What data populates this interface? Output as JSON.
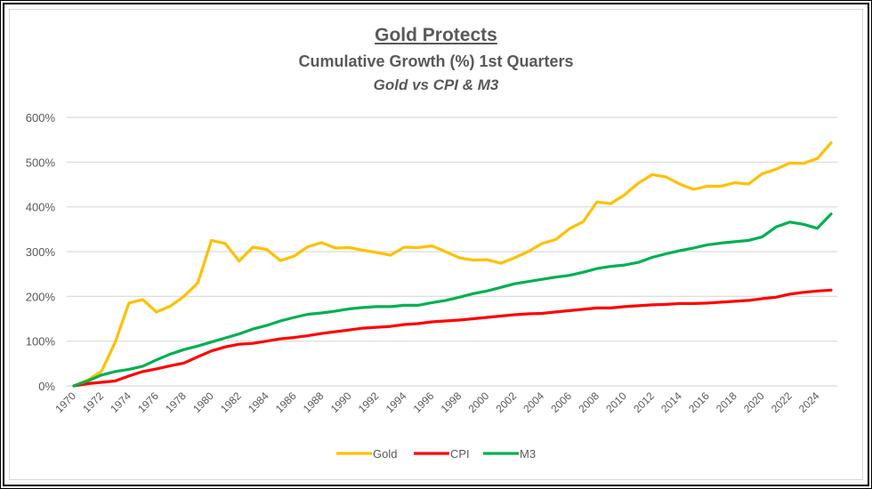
{
  "chart_data": {
    "type": "line",
    "title": "Gold Protects",
    "subtitle": "Cumulative Growth (%) 1st Quarters",
    "subtitle2": "Gold vs CPI & M3",
    "xlabel": "",
    "ylabel": "",
    "ylim": [
      0,
      600
    ],
    "yticks": [
      0,
      100,
      200,
      300,
      400,
      500,
      600
    ],
    "ytick_labels": [
      "0%",
      "100%",
      "200%",
      "300%",
      "400%",
      "500%",
      "600%"
    ],
    "xlim": [
      1970,
      2025
    ],
    "xtick_labels": [
      "1970",
      "1972",
      "1974",
      "1976",
      "1978",
      "1980",
      "1982",
      "1984",
      "1986",
      "1988",
      "1990",
      "1992",
      "1994",
      "1996",
      "1998",
      "2000",
      "2002",
      "2004",
      "2006",
      "2008",
      "2010",
      "2012",
      "2014",
      "2016",
      "2018",
      "2020",
      "2022",
      "2024"
    ],
    "grid": "horizontal",
    "legend_position": "bottom",
    "x": [
      1970,
      1971,
      1972,
      1973,
      1974,
      1975,
      1976,
      1977,
      1978,
      1979,
      1980,
      1981,
      1982,
      1983,
      1984,
      1985,
      1986,
      1987,
      1988,
      1989,
      1990,
      1991,
      1992,
      1993,
      1994,
      1995,
      1996,
      1997,
      1998,
      1999,
      2000,
      2001,
      2002,
      2003,
      2004,
      2005,
      2006,
      2007,
      2008,
      2009,
      2010,
      2011,
      2012,
      2013,
      2014,
      2015,
      2016,
      2017,
      2018,
      2019,
      2020,
      2021,
      2022,
      2023,
      2024,
      2025
    ],
    "series": [
      {
        "name": "Gold",
        "color": "#ffc000",
        "values": [
          0,
          13,
          32,
          97,
          185,
          193,
          165,
          178,
          200,
          230,
          325,
          318,
          279,
          310,
          305,
          280,
          290,
          311,
          320,
          308,
          309,
          303,
          298,
          292,
          310,
          309,
          313,
          300,
          286,
          281,
          282,
          274,
          286,
          300,
          318,
          327,
          351,
          367,
          411,
          407,
          427,
          453,
          472,
          467,
          451,
          439,
          446,
          446,
          454,
          451,
          474,
          484,
          498,
          497,
          508,
          543
        ]
      },
      {
        "name": "CPI",
        "color": "#ff0000",
        "values": [
          0,
          5,
          8,
          11,
          22,
          32,
          38,
          45,
          51,
          65,
          78,
          87,
          93,
          95,
          100,
          105,
          108,
          112,
          117,
          121,
          125,
          129,
          131,
          133,
          137,
          139,
          143,
          145,
          147,
          150,
          153,
          156,
          159,
          161,
          162,
          165,
          168,
          171,
          174,
          174,
          177,
          179,
          181,
          182,
          184,
          184,
          185,
          187,
          189,
          191,
          195,
          198,
          205,
          209,
          212,
          214
        ]
      },
      {
        "name": "M3",
        "color": "#00b050",
        "values": [
          0,
          11,
          24,
          32,
          37,
          44,
          58,
          71,
          81,
          89,
          98,
          107,
          116,
          127,
          135,
          145,
          153,
          160,
          163,
          167,
          172,
          175,
          177,
          177,
          180,
          180,
          186,
          191,
          198,
          206,
          212,
          220,
          228,
          233,
          238,
          243,
          247,
          254,
          262,
          267,
          270,
          276,
          287,
          295,
          302,
          308,
          315,
          319,
          322,
          325,
          333,
          355,
          366,
          361,
          352,
          384
        ]
      }
    ]
  }
}
